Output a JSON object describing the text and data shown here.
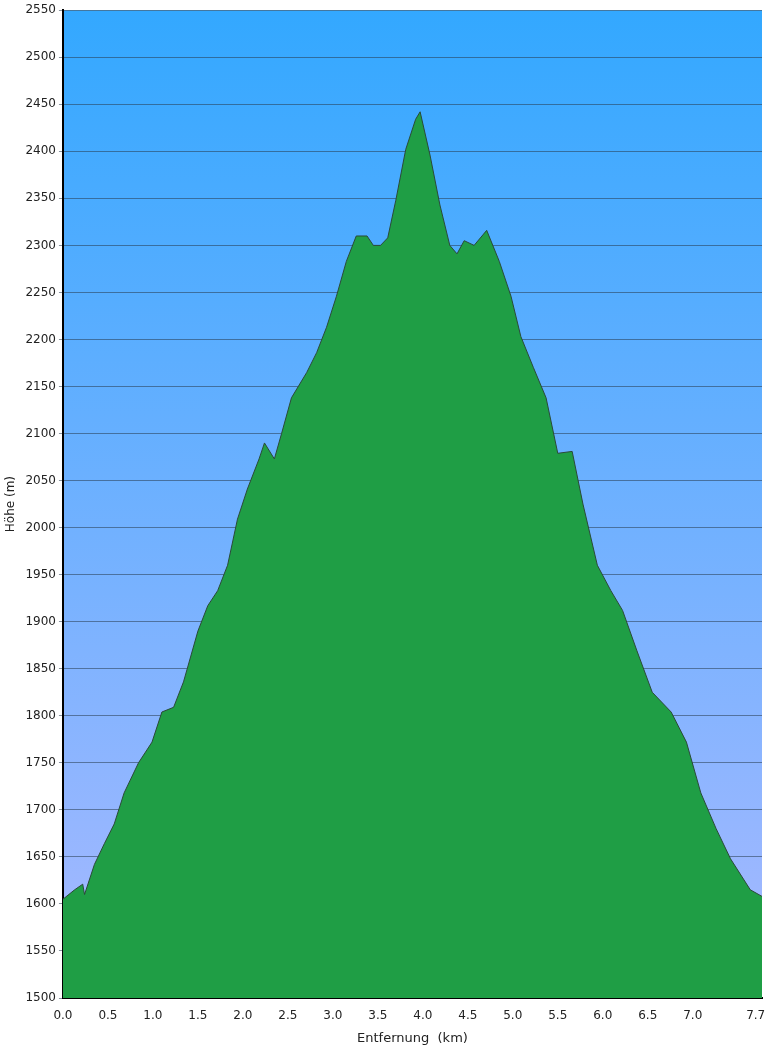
{
  "chart_data": {
    "type": "area",
    "xlabel": "Entfernung  (km)",
    "ylabel": "Höhe (m)",
    "x": [
      0,
      0.13,
      0.22,
      0.24,
      0.35,
      0.46,
      0.57,
      0.68,
      0.84,
      0.99,
      1.1,
      1.23,
      1.34,
      1.5,
      1.61,
      1.72,
      1.83,
      1.94,
      2.05,
      2.18,
      2.24,
      2.35,
      2.43,
      2.54,
      2.71,
      2.82,
      2.93,
      3.04,
      3.15,
      3.26,
      3.38,
      3.45,
      3.53,
      3.61,
      3.7,
      3.81,
      3.92,
      3.97,
      4.08,
      4.19,
      4.3,
      4.38,
      4.46,
      4.57,
      4.71,
      4.85,
      4.98,
      5.09,
      5.23,
      5.37,
      5.5,
      5.66,
      5.78,
      5.94,
      6.09,
      6.22,
      6.38,
      6.55,
      6.76,
      6.93,
      7.09,
      7.26,
      7.42,
      7.64,
      7.77
    ],
    "series": [
      {
        "color": "#1f9e45",
        "values": [
          1605,
          1615,
          1621,
          1610,
          1642,
          1664,
          1685,
          1718,
          1750,
          1772,
          1804,
          1809,
          1836,
          1890,
          1917,
          1933,
          1960,
          2009,
          2041,
          2073,
          2090,
          2073,
          2100,
          2138,
          2165,
          2186,
          2213,
          2246,
          2283,
          2310,
          2310,
          2300,
          2300,
          2308,
          2348,
          2402,
          2434,
          2442,
          2396,
          2343,
          2300,
          2291,
          2305,
          2300,
          2316,
          2283,
          2246,
          2203,
          2170,
          2138,
          2079,
          2081,
          2025,
          1960,
          1933,
          1912,
          1869,
          1825,
          1804,
          1772,
          1718,
          1680,
          1648,
          1615,
          1608
        ]
      }
    ],
    "xlim": [
      0,
      7.77
    ],
    "xticks": [
      {
        "value": 0,
        "label": "0.0"
      },
      0.5,
      {
        "value": 1,
        "label": "1.0"
      },
      1.5,
      {
        "value": 2,
        "label": "2.0"
      },
      2.5,
      {
        "value": 3,
        "label": "3.0"
      },
      3.5,
      {
        "value": 4,
        "label": "4.0"
      },
      4.5,
      {
        "value": 5,
        "label": "5.0"
      },
      5.5,
      {
        "value": 6,
        "label": "6.0"
      },
      6.5,
      {
        "value": 7,
        "label": "7.0"
      },
      7.7
    ],
    "ylim": [
      1500,
      2550
    ],
    "yticks": [
      1500,
      1550,
      1600,
      1650,
      1700,
      1750,
      1800,
      1850,
      1900,
      1950,
      2000,
      2050,
      2100,
      2150,
      2200,
      2250,
      2300,
      2350,
      2400,
      2450,
      2500,
      2550
    ],
    "grid": "y",
    "legend": false,
    "marker": "none"
  }
}
